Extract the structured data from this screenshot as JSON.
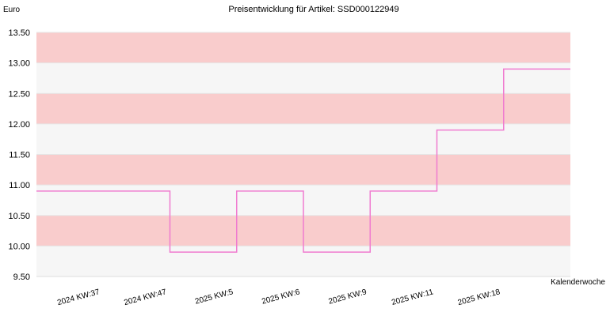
{
  "chart_data": {
    "type": "step",
    "title": "Preisentwicklung für Artikel: SSD000122949",
    "y_label": "Euro",
    "x_label": "Kalenderwoche",
    "categories": [
      "2024 KW:37",
      "2024 KW:47",
      "2025 KW:5",
      "2025 KW:6",
      "2025 KW:9",
      "2025 KW:11",
      "2025 KW:18"
    ],
    "values": [
      10.9,
      9.9,
      10.9,
      9.9,
      10.9,
      11.9,
      12.9
    ],
    "color": "#f07bd0",
    "band_colors": [
      "#f6f6f6",
      "#f9cccc"
    ],
    "ylim": [
      9.5,
      13.5
    ],
    "yticks": [
      {
        "value": 9.5,
        "label": "9.50"
      },
      {
        "value": 10,
        "label": "10.00"
      },
      {
        "value": 10.5,
        "label": "10.50"
      },
      {
        "value": 11,
        "label": "11.00"
      },
      {
        "value": 11.5,
        "label": "11.50"
      },
      {
        "value": 12,
        "label": "12.00"
      },
      {
        "value": 12.5,
        "label": "12.50"
      },
      {
        "value": 13,
        "label": "13.00"
      },
      {
        "value": 13.5,
        "label": "13.50"
      }
    ]
  }
}
